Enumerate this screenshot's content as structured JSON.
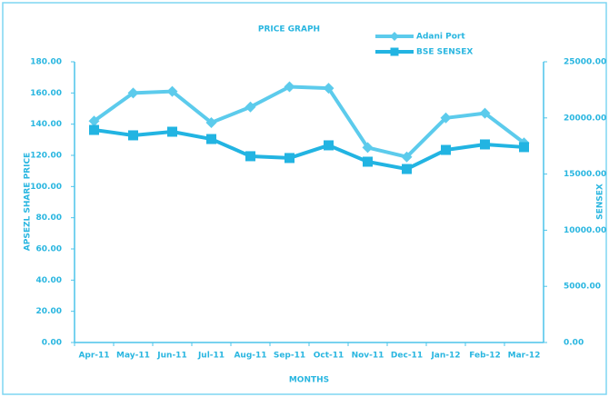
{
  "chart_data": {
    "type": "line",
    "title": "PRICE GRAPH",
    "xlabel": "MONTHS",
    "ylabel": "APSEZL SHARE PRICE",
    "y2label": "SENSEX",
    "categories": [
      "Apr-11",
      "May-11",
      "Jun-11",
      "Jul-11",
      "Aug-11",
      "Sep-11",
      "Oct-11",
      "Nov-11",
      "Dec-11",
      "Jan-12",
      "Feb-12",
      "Mar-12"
    ],
    "series": [
      {
        "name": "Adani Port",
        "color": "#5ccbec",
        "marker": "diamond",
        "values": [
          142,
          160,
          161,
          141,
          151,
          164,
          163,
          125,
          119,
          144,
          147,
          128
        ]
      },
      {
        "name": "BSE SENSEX",
        "color": "#22b4e2",
        "marker": "square",
        "axis": "y2",
        "values": [
          18930,
          18450,
          18770,
          18120,
          16590,
          16430,
          17560,
          16100,
          15450,
          17150,
          17640,
          17400
        ]
      }
    ],
    "ylim": [
      0,
      180
    ],
    "yticks": [
      {
        "value": 0,
        "label": "0.00"
      },
      {
        "value": 20,
        "label": "20.00"
      },
      {
        "value": 40,
        "label": "40.00"
      },
      {
        "value": 60,
        "label": "60.00"
      },
      {
        "value": 80,
        "label": "80.00"
      },
      {
        "value": 100,
        "label": "100.00"
      },
      {
        "value": 120,
        "label": "120.00"
      },
      {
        "value": 140,
        "label": "140.00"
      },
      {
        "value": 160,
        "label": "160.00"
      },
      {
        "value": 180,
        "label": "180.00"
      }
    ],
    "y2lim": [
      0,
      25000
    ],
    "y2ticks": [
      {
        "value": 0,
        "label": "0.00"
      },
      {
        "value": 5000,
        "label": "5000.00"
      },
      {
        "value": 10000,
        "label": "10000.00"
      },
      {
        "value": 15000,
        "label": "15000.00"
      },
      {
        "value": 20000,
        "label": "20000.00"
      },
      {
        "value": 25000,
        "label": "25000.00"
      }
    ],
    "legend": "top-right",
    "grid": false
  }
}
